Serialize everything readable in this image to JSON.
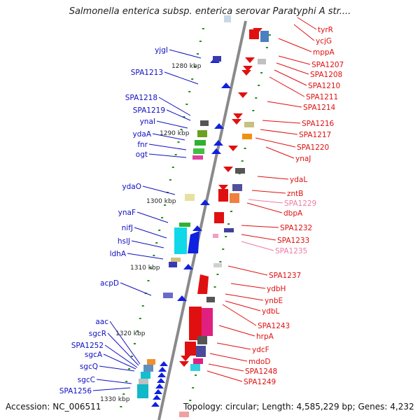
{
  "title": "Salmonella enterica subsp. enterica serovar Paratyphi A str....",
  "accession_text": "Accession: NC_006511",
  "topology_text": "Topology: circular; Length: 4,585,229 bp; Genes: 4,232",
  "colors": {
    "left_label": "#1010c0",
    "right_label": "#e01010",
    "faded_label": "#f07aa8",
    "tick": "#228b22",
    "backbone": "#888888"
  },
  "kbp_labels": [
    "1280 kbp",
    "1290 kbp",
    "1300 kbp",
    "1310 kbp",
    "1320 kbp",
    "1330 kbp"
  ],
  "left_genes": [
    "yjgI",
    "SPA1213",
    "SPA1218",
    "SPA1219",
    "ynaI",
    "ydaA",
    "fnr",
    "ogt",
    "ydaO",
    "ynaF",
    "nifJ",
    "hslJ",
    "ldhA",
    "acpD",
    "aac",
    "sgcR",
    "SPA1252",
    "sgcA",
    "sgcQ",
    "sgcC",
    "SPA1256"
  ],
  "right_genes": [
    "tyrR",
    "ycjG",
    "mppA",
    "SPA1207",
    "SPA1208",
    "SPA1210",
    "SPA1211",
    "SPA1214",
    "SPA1216",
    "SPA1217",
    "SPA1220",
    "ynaJ",
    "ydaL",
    "zntB",
    "SPA1229",
    "dbpA",
    "SPA1232",
    "SPA1233",
    "SPA1235",
    "SPA1237",
    "ydbH",
    "ynbE",
    "ydbL",
    "SPA1243",
    "hrpA",
    "ydcF",
    "mdoD",
    "SPA1248",
    "SPA1249"
  ],
  "faded_genes": [
    "SPA1229",
    "SPA1235"
  ]
}
